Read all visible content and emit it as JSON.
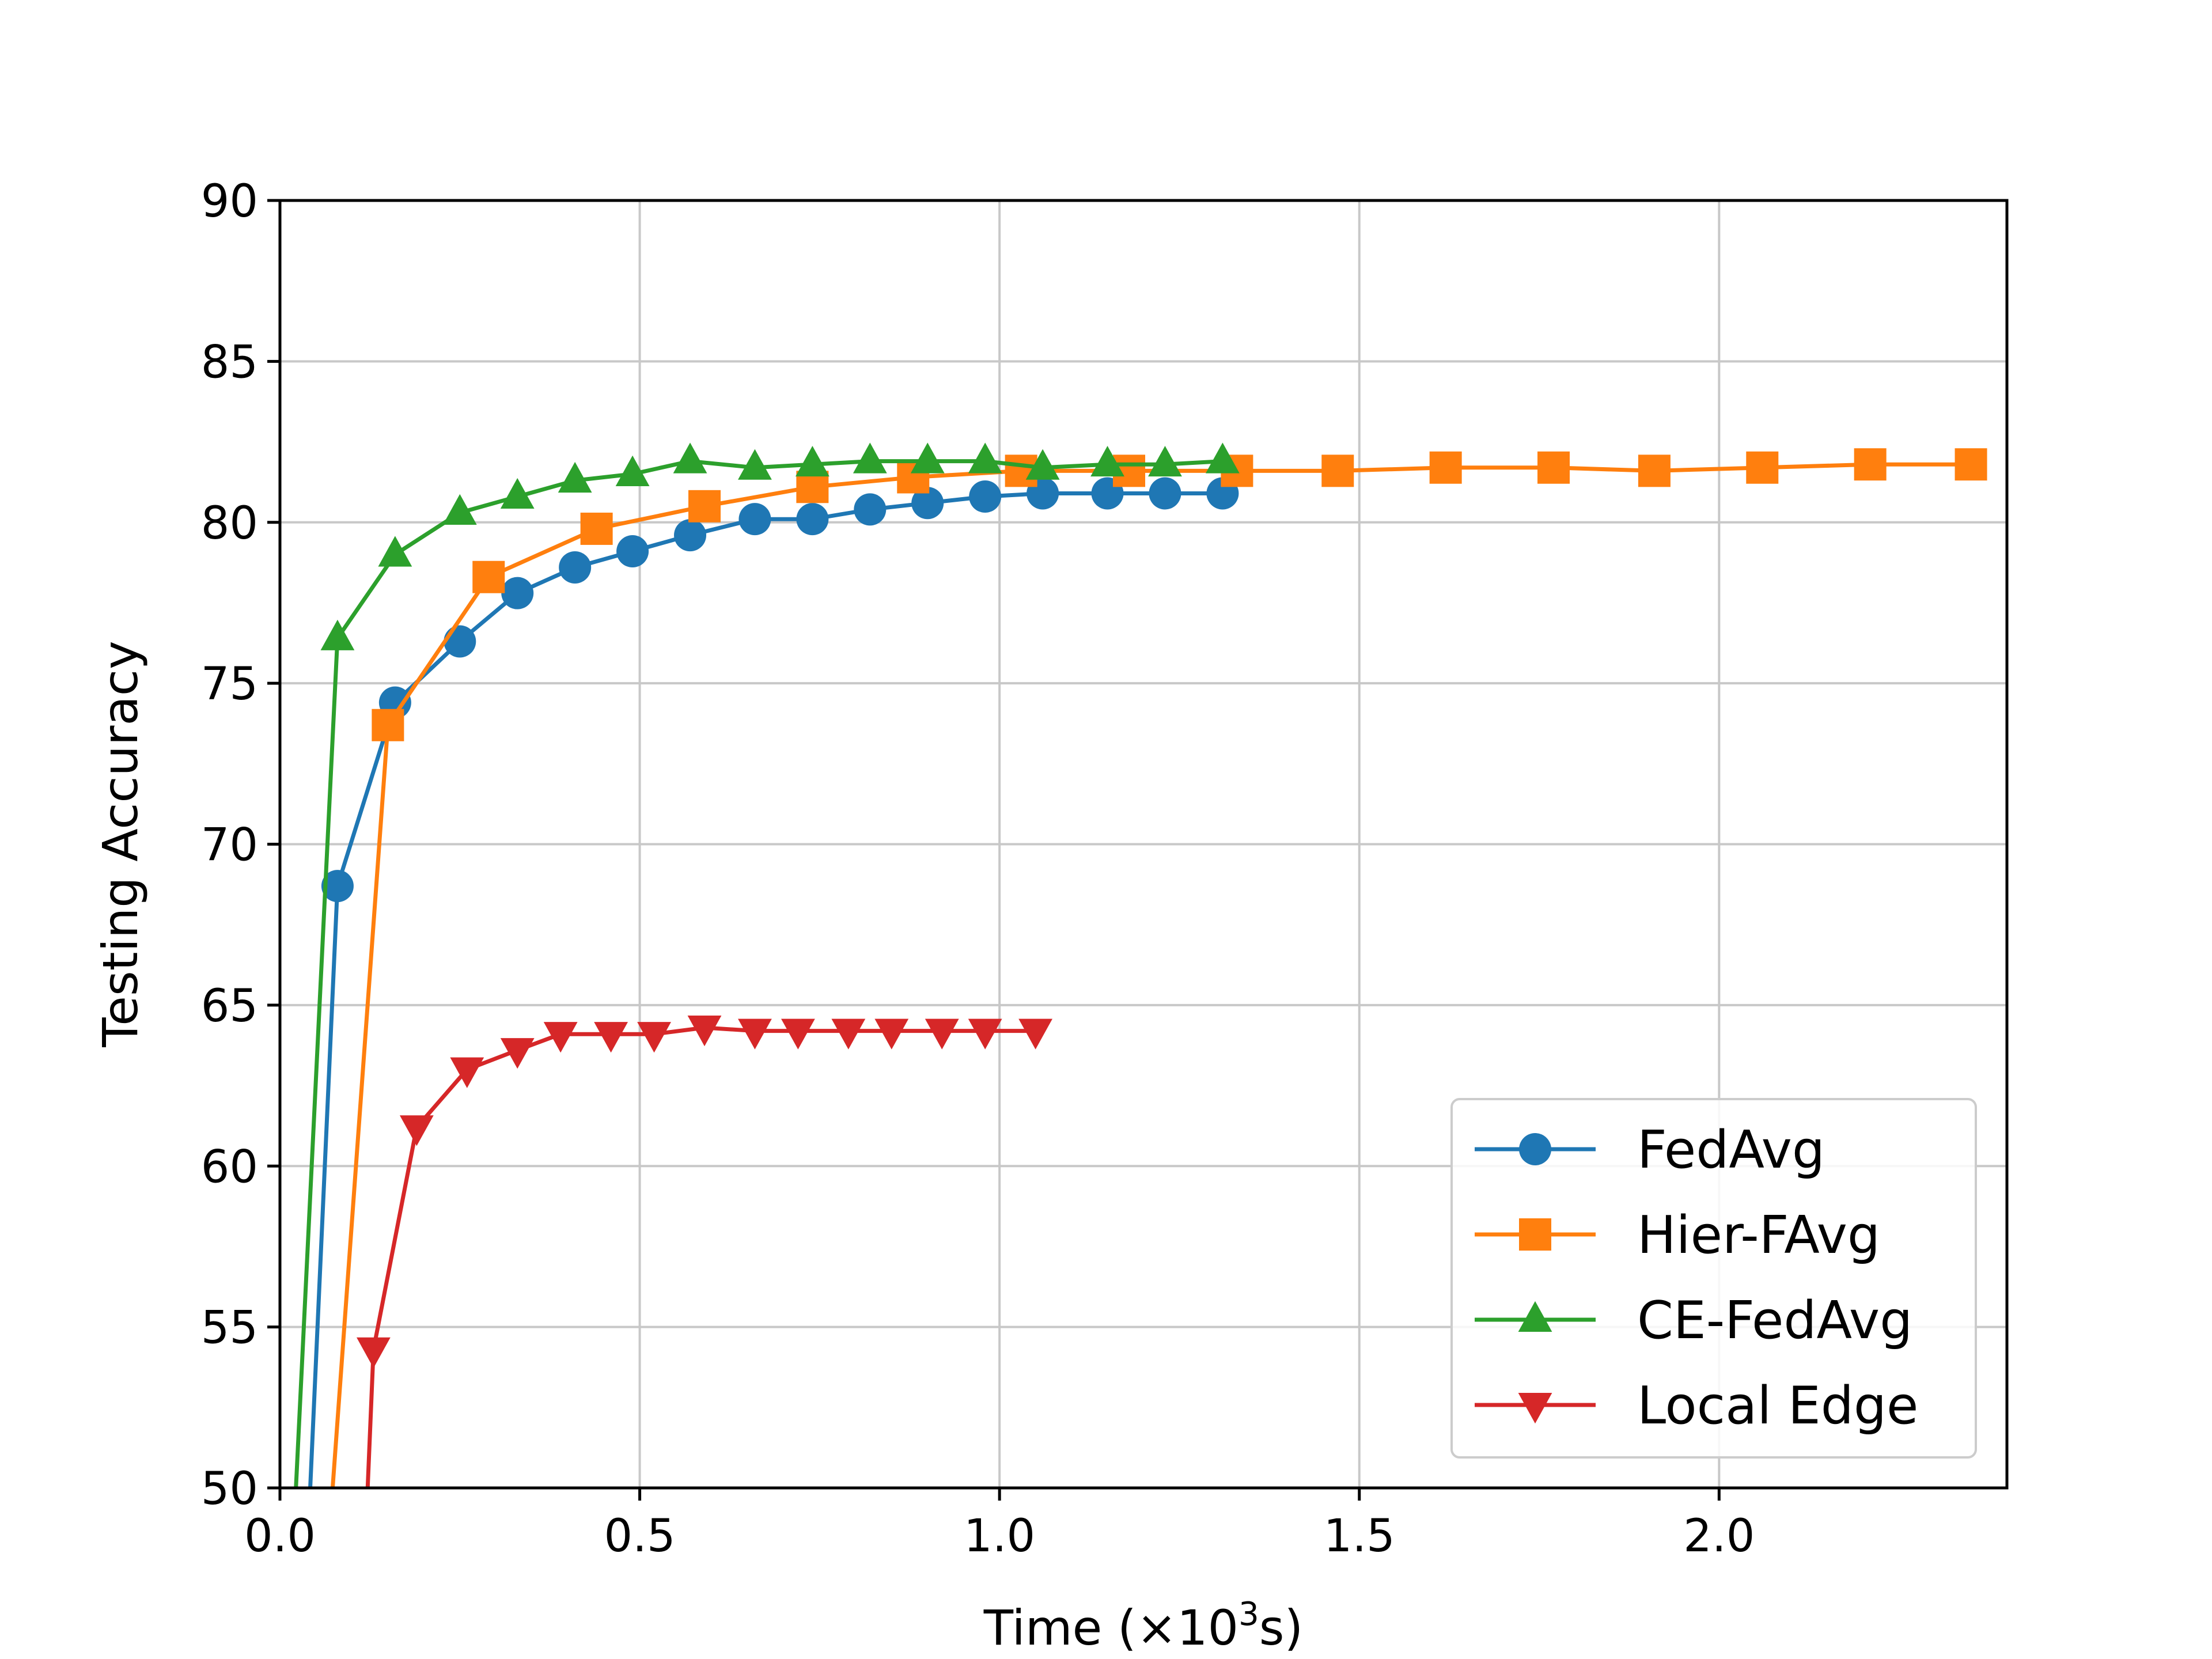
{
  "chart_data": {
    "type": "line",
    "xlabel_main": "Time (×10",
    "xlabel_sup": "3",
    "xlabel_end": "s)",
    "ylabel": "Testing Accuracy",
    "xlim": [
      0,
      2.4
    ],
    "ylim": [
      50,
      90
    ],
    "xticks": [
      0.0,
      0.5,
      1.0,
      1.5,
      2.0
    ],
    "xtick_labels": [
      "0.0",
      "0.5",
      "1.0",
      "1.5",
      "2.0"
    ],
    "yticks": [
      50,
      55,
      60,
      65,
      70,
      75,
      80,
      85,
      90
    ],
    "ytick_labels": [
      "50",
      "55",
      "60",
      "65",
      "70",
      "75",
      "80",
      "85",
      "90"
    ],
    "grid": true,
    "legend_position": "lower-right",
    "series": [
      {
        "name": "FedAvg",
        "color": "#1f77b4",
        "marker": "circle",
        "points": [
          [
            0.04,
            49.0
          ],
          [
            0.08,
            68.7
          ],
          [
            0.16,
            74.4
          ],
          [
            0.25,
            76.3
          ],
          [
            0.33,
            77.8
          ],
          [
            0.41,
            78.6
          ],
          [
            0.49,
            79.1
          ],
          [
            0.57,
            79.6
          ],
          [
            0.66,
            80.1
          ],
          [
            0.74,
            80.1
          ],
          [
            0.82,
            80.4
          ],
          [
            0.9,
            80.6
          ],
          [
            0.98,
            80.8
          ],
          [
            1.06,
            80.9
          ],
          [
            1.15,
            80.9
          ],
          [
            1.23,
            80.9
          ],
          [
            1.31,
            80.9
          ]
        ]
      },
      {
        "name": "Hier-FAvg",
        "color": "#ff7f0e",
        "marker": "square",
        "points": [
          [
            0.07,
            49.0
          ],
          [
            0.15,
            73.7
          ],
          [
            0.29,
            78.3
          ],
          [
            0.44,
            79.8
          ],
          [
            0.59,
            80.5
          ],
          [
            0.74,
            81.1
          ],
          [
            0.88,
            81.4
          ],
          [
            1.03,
            81.6
          ],
          [
            1.18,
            81.6
          ],
          [
            1.33,
            81.6
          ],
          [
            1.47,
            81.6
          ],
          [
            1.62,
            81.7
          ],
          [
            1.77,
            81.7
          ],
          [
            1.91,
            81.6
          ],
          [
            2.06,
            81.7
          ],
          [
            2.21,
            81.8
          ],
          [
            2.35,
            81.8
          ]
        ]
      },
      {
        "name": "CE-FedAvg",
        "color": "#2ca02c",
        "marker": "triangle-up",
        "points": [
          [
            0.02,
            49.0
          ],
          [
            0.08,
            76.4
          ],
          [
            0.16,
            79.0
          ],
          [
            0.25,
            80.3
          ],
          [
            0.33,
            80.8
          ],
          [
            0.41,
            81.3
          ],
          [
            0.49,
            81.5
          ],
          [
            0.57,
            81.9
          ],
          [
            0.66,
            81.7
          ],
          [
            0.74,
            81.8
          ],
          [
            0.82,
            81.9
          ],
          [
            0.9,
            81.9
          ],
          [
            0.98,
            81.9
          ],
          [
            1.06,
            81.7
          ],
          [
            1.15,
            81.8
          ],
          [
            1.23,
            81.8
          ],
          [
            1.31,
            81.9
          ]
        ]
      },
      {
        "name": "Local Edge",
        "color": "#d62728",
        "marker": "triangle-down",
        "points": [
          [
            0.12,
            49.0
          ],
          [
            0.13,
            54.3
          ],
          [
            0.19,
            61.2
          ],
          [
            0.26,
            63.0
          ],
          [
            0.33,
            63.6
          ],
          [
            0.39,
            64.1
          ],
          [
            0.46,
            64.1
          ],
          [
            0.52,
            64.1
          ],
          [
            0.59,
            64.3
          ],
          [
            0.66,
            64.2
          ],
          [
            0.72,
            64.2
          ],
          [
            0.79,
            64.2
          ],
          [
            0.85,
            64.2
          ],
          [
            0.92,
            64.2
          ],
          [
            0.98,
            64.2
          ],
          [
            1.05,
            64.2
          ]
        ]
      }
    ]
  }
}
